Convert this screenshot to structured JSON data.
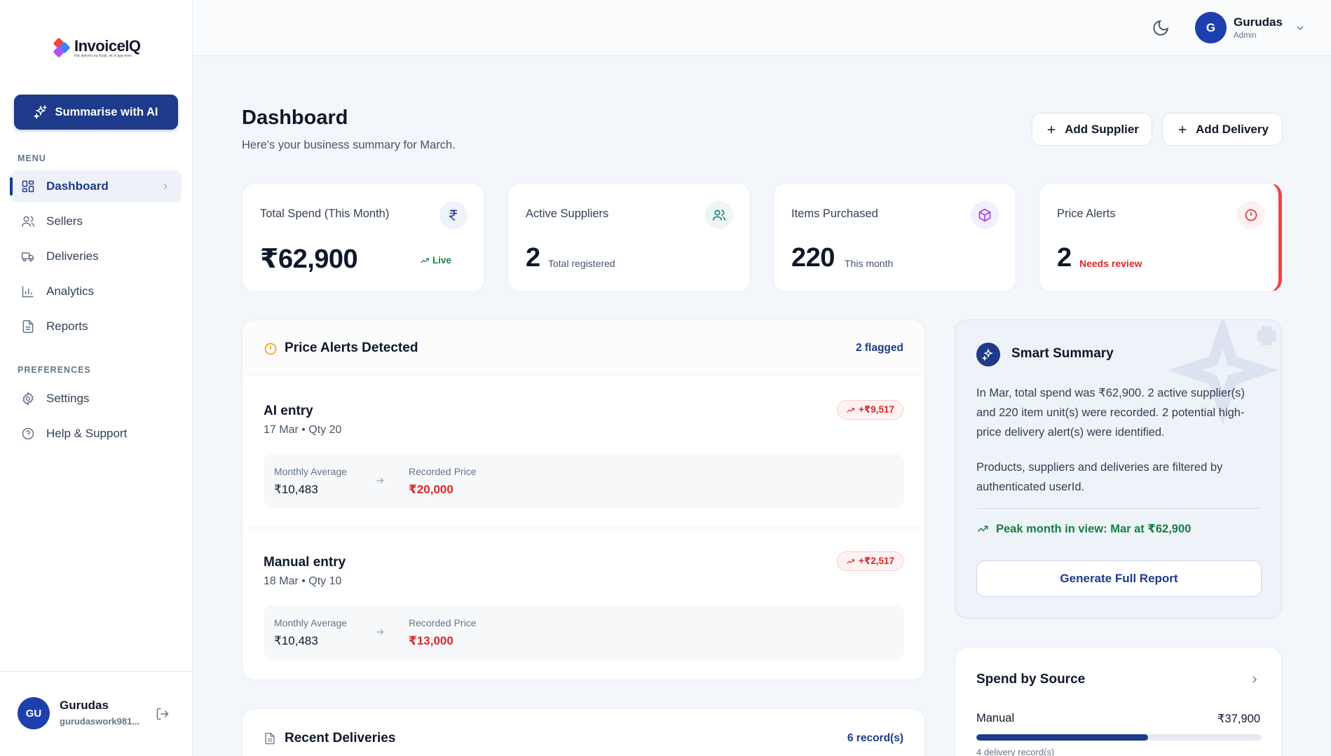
{
  "app": {
    "logo_name": "InvoiceIQ",
    "logo_tagline": "Har delivery ka hisab, ek hi app mein"
  },
  "sidebar": {
    "ai_button": "Summarise with AI",
    "menu_label": "MENU",
    "items": [
      {
        "label": "Dashboard",
        "icon": "dashboard-icon",
        "active": true
      },
      {
        "label": "Sellers",
        "icon": "users-icon"
      },
      {
        "label": "Deliveries",
        "icon": "truck-icon"
      },
      {
        "label": "Analytics",
        "icon": "bar-chart-icon"
      },
      {
        "label": "Reports",
        "icon": "file-text-icon"
      }
    ],
    "preferences_label": "PREFERENCES",
    "pref_items": [
      {
        "label": "Settings",
        "icon": "gear-icon"
      },
      {
        "label": "Help & Support",
        "icon": "help-circle-icon"
      }
    ],
    "user": {
      "initials": "GU",
      "name": "Gurudas",
      "email": "gurudaswork981..."
    }
  },
  "topbar": {
    "avatar_initial": "G",
    "name": "Gurudas",
    "role": "Admin"
  },
  "header": {
    "title": "Dashboard",
    "subtitle": "Here's your business summary for March.",
    "add_supplier": "Add Supplier",
    "add_delivery": "Add Delivery"
  },
  "stats": [
    {
      "label": "Total Spend (This Month)",
      "value": "₹62,900",
      "note": "Live",
      "icon": "rupee-icon"
    },
    {
      "label": "Active Suppliers",
      "value": "2",
      "note": "Total registered",
      "icon": "users-icon"
    },
    {
      "label": "Items Purchased",
      "value": "220",
      "note": "This month",
      "icon": "box-icon"
    },
    {
      "label": "Price Alerts",
      "value": "2",
      "note": "Needs review",
      "icon": "alert-circle-icon"
    }
  ],
  "price_alerts": {
    "title": "Price Alerts Detected",
    "flagged": "2 flagged",
    "entries": [
      {
        "title": "AI entry",
        "meta": "17 Mar • Qty 20",
        "badge": "+₹9,517",
        "avg_label": "Monthly Average",
        "avg_value": "₹10,483",
        "rec_label": "Recorded Price",
        "rec_value": "₹20,000"
      },
      {
        "title": "Manual entry",
        "meta": "18 Mar • Qty 10",
        "badge": "+₹2,517",
        "avg_label": "Monthly Average",
        "avg_value": "₹10,483",
        "rec_label": "Recorded Price",
        "rec_value": "₹13,000"
      }
    ]
  },
  "recent_deliveries": {
    "title": "Recent Deliveries",
    "count": "6 record(s)"
  },
  "smart_summary": {
    "title": "Smart Summary",
    "para1": "In Mar, total spend was ₹62,900. 2 active supplier(s) and 220 item unit(s) were recorded. 2 potential high-price delivery alert(s) were identified.",
    "para2": "Products, suppliers and deliveries are filtered by authenticated userId.",
    "peak": "Peak month in view: Mar at ₹62,900",
    "button": "Generate Full Report"
  },
  "spend_by_source": {
    "title": "Spend by Source",
    "items": [
      {
        "label": "Manual",
        "amount": "₹37,900",
        "share": 0.603,
        "sub": "4 delivery record(s)"
      }
    ]
  },
  "colors": {
    "primary": "#1e3a8a",
    "danger": "#dc2626",
    "success": "#15803d",
    "warning": "#f59e0b"
  }
}
